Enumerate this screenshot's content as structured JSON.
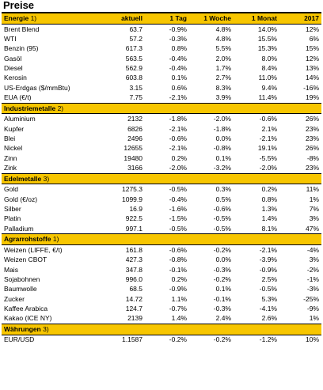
{
  "title": "Preise",
  "columns": [
    "aktuell",
    "1 Tag",
    "1 Woche",
    "1 Monat",
    "2017"
  ],
  "sections": [
    {
      "name": "Energie",
      "note": "1)",
      "rows": [
        {
          "name": "Brent Blend",
          "aktuell": "63.7",
          "tag": "-0.9%",
          "woche": "4.8%",
          "monat": "14.0%",
          "jahr": "12%"
        },
        {
          "name": "WTI",
          "aktuell": "57.2",
          "tag": "-0.3%",
          "woche": "4.8%",
          "monat": "15.5%",
          "jahr": "6%"
        },
        {
          "name": "Benzin (95)",
          "aktuell": "617.3",
          "tag": "0.8%",
          "woche": "5.5%",
          "monat": "15.3%",
          "jahr": "15%"
        },
        {
          "name": "Gasöl",
          "aktuell": "563.5",
          "tag": "-0.4%",
          "woche": "2.0%",
          "monat": "8.0%",
          "jahr": "12%"
        },
        {
          "name": "Diesel",
          "aktuell": "562.9",
          "tag": "-0.4%",
          "woche": "1.7%",
          "monat": "8.4%",
          "jahr": "13%"
        },
        {
          "name": "Kerosin",
          "aktuell": "603.8",
          "tag": "0.1%",
          "woche": "2.7%",
          "monat": "11.0%",
          "jahr": "14%"
        },
        {
          "name": "US-Erdgas ($/mmBtu)",
          "aktuell": "3.15",
          "tag": "0.6%",
          "woche": "8.3%",
          "monat": "9.4%",
          "jahr": "-16%"
        },
        {
          "name": "EUA (€/t)",
          "aktuell": "7.75",
          "tag": "-2.1%",
          "woche": "3.9%",
          "monat": "11.4%",
          "jahr": "19%"
        }
      ]
    },
    {
      "name": "Industriemetalle",
      "note": "2)",
      "rows": [
        {
          "name": "Aluminium",
          "aktuell": "2132",
          "tag": "-1.8%",
          "woche": "-2.0%",
          "monat": "-0.6%",
          "jahr": "26%"
        },
        {
          "name": "Kupfer",
          "aktuell": "6826",
          "tag": "-2.1%",
          "woche": "-1.8%",
          "monat": "2.1%",
          "jahr": "23%"
        },
        {
          "name": "Blei",
          "aktuell": "2496",
          "tag": "-0.6%",
          "woche": "0.0%",
          "monat": "-2.1%",
          "jahr": "23%"
        },
        {
          "name": "Nickel",
          "aktuell": "12655",
          "tag": "-2.1%",
          "woche": "-0.8%",
          "monat": "19.1%",
          "jahr": "26%"
        },
        {
          "name": "Zinn",
          "aktuell": "19480",
          "tag": "0.2%",
          "woche": "0.1%",
          "monat": "-5.5%",
          "jahr": "-8%"
        },
        {
          "name": "Zink",
          "aktuell": "3166",
          "tag": "-2.0%",
          "woche": "-3.2%",
          "monat": "-2.0%",
          "jahr": "23%"
        }
      ]
    },
    {
      "name": "Edelmetalle",
      "note": "3)",
      "rows": [
        {
          "name": "Gold",
          "aktuell": "1275.3",
          "tag": "-0.5%",
          "woche": "0.3%",
          "monat": "0.2%",
          "jahr": "11%"
        },
        {
          "name": "Gold (€/oz)",
          "aktuell": "1099.9",
          "tag": "-0.4%",
          "woche": "0.5%",
          "monat": "0.8%",
          "jahr": "1%"
        },
        {
          "name": "Silber",
          "aktuell": "16.9",
          "tag": "-1.6%",
          "woche": "-0.6%",
          "monat": "1.3%",
          "jahr": "7%"
        },
        {
          "name": "Platin",
          "aktuell": "922.5",
          "tag": "-1.5%",
          "woche": "-0.5%",
          "monat": "1.4%",
          "jahr": "3%"
        },
        {
          "name": "Palladium",
          "aktuell": "997.1",
          "tag": "-0.5%",
          "woche": "-0.5%",
          "monat": "8.1%",
          "jahr": "47%"
        }
      ]
    },
    {
      "name": "Agrarrohstoffe",
      "note": "1)",
      "rows": [
        {
          "name": "Weizen (LIFFE, €/t)",
          "aktuell": "161.8",
          "tag": "-0.6%",
          "woche": "-0.2%",
          "monat": "-2.1%",
          "jahr": "-4%"
        },
        {
          "name": "Weizen CBOT",
          "aktuell": "427.3",
          "tag": "-0.8%",
          "woche": "0.0%",
          "monat": "-3.9%",
          "jahr": "3%"
        },
        {
          "name": "Mais",
          "aktuell": "347.8",
          "tag": "-0.1%",
          "woche": "-0.3%",
          "monat": "-0.9%",
          "jahr": "-2%"
        },
        {
          "name": "Sojabohnen",
          "aktuell": "996.0",
          "tag": "0.2%",
          "woche": "-0.2%",
          "monat": "2.5%",
          "jahr": "-1%"
        },
        {
          "name": "Baumwolle",
          "aktuell": "68.5",
          "tag": "-0.9%",
          "woche": "0.1%",
          "monat": "-0.5%",
          "jahr": "-3%"
        },
        {
          "name": "Zucker",
          "aktuell": "14.72",
          "tag": "1.1%",
          "woche": "-0.1%",
          "monat": "5.3%",
          "jahr": "-25%"
        },
        {
          "name": "Kaffee Arabica",
          "aktuell": "124.7",
          "tag": "-0.7%",
          "woche": "-0.3%",
          "monat": "-4.1%",
          "jahr": "-9%"
        },
        {
          "name": "Kakao (ICE NY)",
          "aktuell": "2139",
          "tag": "1.4%",
          "woche": "2.4%",
          "monat": "2.6%",
          "jahr": "1%"
        }
      ]
    },
    {
      "name": "Währungen",
      "note": "3)",
      "rows": [
        {
          "name": "EUR/USD",
          "aktuell": "1.1587",
          "tag": "-0.2%",
          "woche": "-0.2%",
          "monat": "-1.2%",
          "jahr": "10%"
        }
      ]
    }
  ]
}
